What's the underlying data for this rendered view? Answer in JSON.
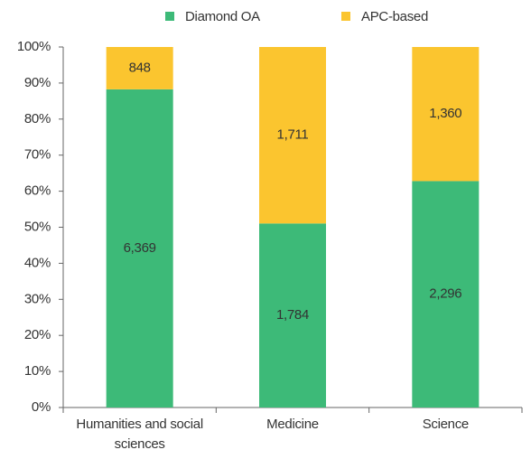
{
  "chart_data": {
    "type": "bar",
    "stacked": "percent",
    "categories": [
      "Humanities and social sciences",
      "Medicine",
      "Science"
    ],
    "series": [
      {
        "name": "Diamond OA",
        "color": "#3dba78",
        "values": [
          6369,
          1784,
          2296
        ],
        "value_labels": [
          "6,369",
          "1,784",
          "2,296"
        ]
      },
      {
        "name": "APC-based",
        "color": "#fbc52f",
        "values": [
          848,
          1711,
          1360
        ],
        "value_labels": [
          "848",
          "1,711",
          "1,360"
        ]
      }
    ],
    "ylim": [
      0,
      100
    ],
    "yticks": [
      {
        "value": 0,
        "label": "0%"
      },
      {
        "value": 10,
        "label": "10%"
      },
      {
        "value": 20,
        "label": "20%"
      },
      {
        "value": 30,
        "label": "30%"
      },
      {
        "value": 40,
        "label": "40%"
      },
      {
        "value": 50,
        "label": "50%"
      },
      {
        "value": 60,
        "label": "60%"
      },
      {
        "value": 70,
        "label": "70%"
      },
      {
        "value": 80,
        "label": "80%"
      },
      {
        "value": 90,
        "label": "90%"
      },
      {
        "value": 100,
        "label": "100%"
      }
    ],
    "grid": false,
    "legend": "top"
  }
}
